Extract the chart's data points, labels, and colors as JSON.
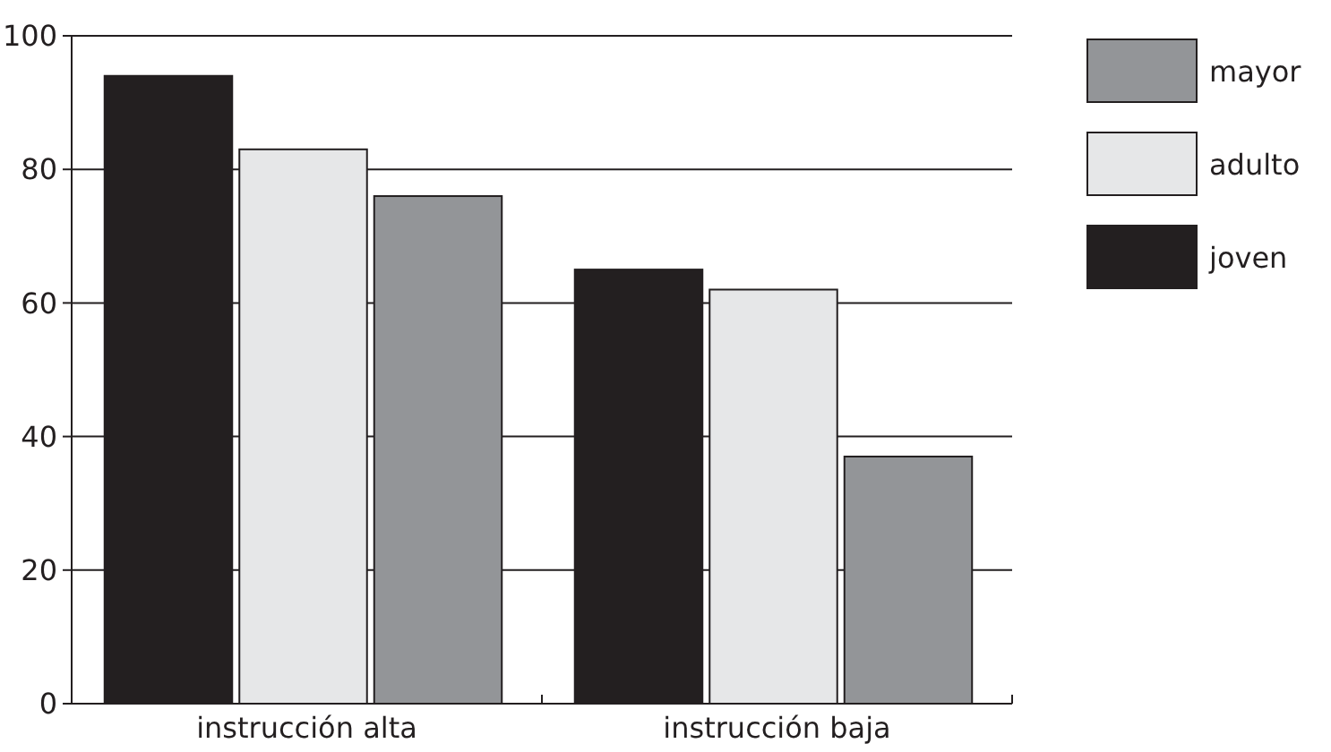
{
  "chart_data": {
    "type": "bar",
    "categories": [
      "instrucción alta",
      "instrucción baja"
    ],
    "series": [
      {
        "name": "joven",
        "color": "#231f20",
        "values": [
          94,
          65
        ]
      },
      {
        "name": "adulto",
        "color": "#e6e7e8",
        "values": [
          83,
          62
        ]
      },
      {
        "name": "mayor",
        "color": "#939598",
        "values": [
          76,
          37
        ]
      }
    ],
    "ylim": [
      0,
      100
    ],
    "yticks": [
      0,
      20,
      40,
      60,
      80,
      100
    ],
    "grid": "y",
    "legend": "right"
  }
}
